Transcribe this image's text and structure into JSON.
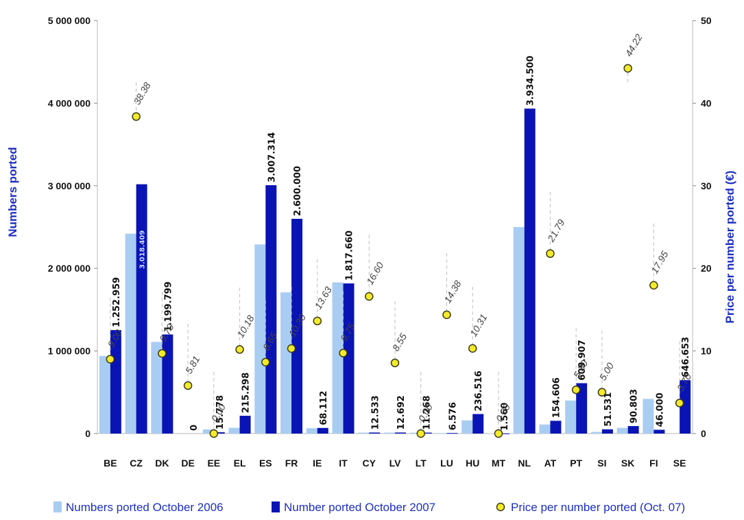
{
  "chart_data": {
    "type": "bar",
    "title": "",
    "xlabel": "",
    "ylabel": "Numbers ported",
    "y2label": "Price per number ported (€)",
    "ylim": [
      0,
      5000000
    ],
    "y2lim": [
      0,
      50
    ],
    "yticks": [
      "0",
      "1 000 000",
      "2 000 000",
      "3 000 000",
      "4 000 000",
      "5 000 000"
    ],
    "y2ticks": [
      "0",
      "10",
      "20",
      "30",
      "40",
      "50"
    ],
    "grid": false,
    "legend_position": "bottom",
    "categories": [
      "BE",
      "CZ",
      "DK",
      "DE",
      "EE",
      "EL",
      "ES",
      "FR",
      "IE",
      "IT",
      "CY",
      "LV",
      "LT",
      "LU",
      "HU",
      "MT",
      "NL",
      "AT",
      "PT",
      "SI",
      "SK",
      "FI",
      "SE"
    ],
    "series": [
      {
        "name": "Numbers ported October 2006",
        "kind": "bar",
        "color": "#a9cdf2",
        "values": [
          940000,
          2420000,
          1110000,
          0,
          50000,
          70000,
          2290000,
          1710000,
          65000,
          1830000,
          12000,
          12000,
          11000,
          6000,
          160000,
          1000,
          2500000,
          110000,
          400000,
          20000,
          70000,
          420000,
          0
        ]
      },
      {
        "name": "Number ported October 2007",
        "kind": "bar",
        "color": "#0a14b4",
        "values": [
          1252959,
          3018409,
          1199799,
          0,
          15778,
          215298,
          3007314,
          2600000,
          68112,
          1817660,
          12533,
          12692,
          11268,
          6576,
          236516,
          1560,
          3934500,
          154606,
          609907,
          51531,
          90803,
          46000,
          646653
        ],
        "labels": [
          "1.252.959",
          "3.018.409",
          "1.199.799",
          "0",
          "15.778",
          "215.298",
          "3.007.314",
          "2.600.000",
          "68.112",
          "1.817.660",
          "12.533",
          "12.692",
          "11.268",
          "6.576",
          "236.516",
          "1.560",
          "3.934.500",
          "154.606",
          "609.907",
          "51.531",
          "90.803",
          "46.000",
          "646.653"
        ]
      },
      {
        "name": "Price per number ported (Oct. 07)",
        "kind": "scatter",
        "axis": "right",
        "marker_fill": "#f3ea2a",
        "marker_edge": "#3a3a1a",
        "values": [
          9.0,
          38.38,
          9.7,
          5.81,
          0.0,
          10.18,
          8.65,
          10.3,
          13.63,
          9.75,
          16.6,
          8.55,
          0.0,
          14.38,
          10.31,
          0.0,
          null,
          21.79,
          5.3,
          5.0,
          44.22,
          17.95,
          3.7
        ],
        "labels": [
          "9.00",
          "38.38",
          "9.70",
          "5.81",
          "0.00",
          "10.18",
          "8.65",
          "10.30",
          "13.63",
          "9.75",
          "16.60",
          "8.55",
          "0.00",
          "14.38",
          "10.31",
          "0.00",
          "",
          "21.79",
          "5.30",
          "5.00",
          "44.22",
          "17.95",
          "3.70"
        ]
      }
    ]
  }
}
